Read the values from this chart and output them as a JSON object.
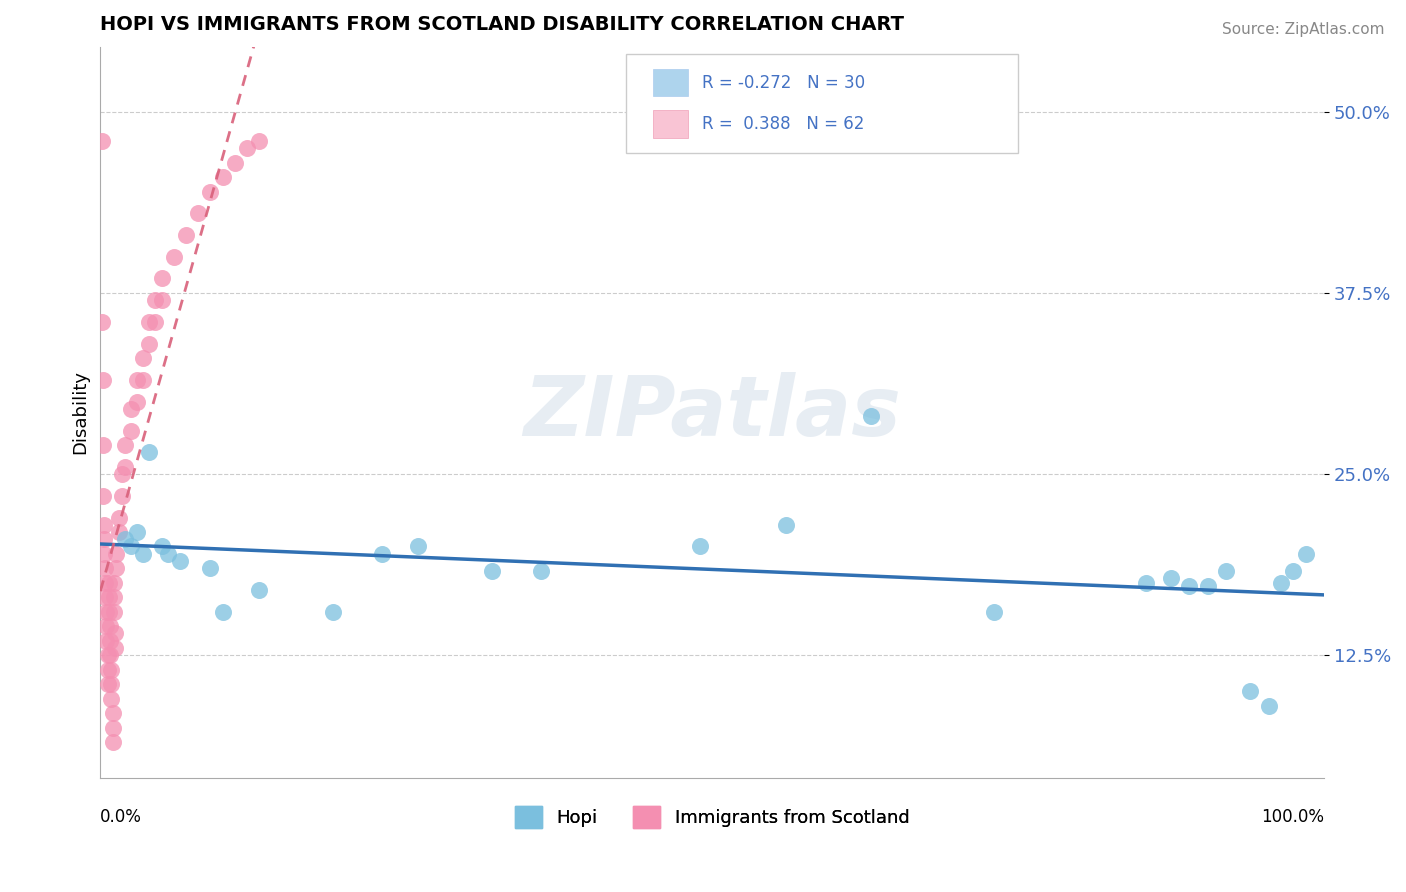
{
  "title": "HOPI VS IMMIGRANTS FROM SCOTLAND DISABILITY CORRELATION CHART",
  "source": "Source: ZipAtlas.com",
  "ylabel": "Disability",
  "y_ticks": [
    0.125,
    0.25,
    0.375,
    0.5
  ],
  "y_tick_labels": [
    "12.5%",
    "25.0%",
    "37.5%",
    "50.0%"
  ],
  "xlim": [
    0.0,
    1.0
  ],
  "ylim": [
    0.04,
    0.545
  ],
  "hopi_color": "#7bbfde",
  "scotland_color": "#f48fb1",
  "hopi_line_color": "#3070b3",
  "scotland_line_color": "#d9607a",
  "hopi_legend_color": "#aed4ed",
  "scotland_legend_color": "#f9c4d4",
  "watermark": "ZIPatlas",
  "hopi_points": [
    [
      0.02,
      0.205
    ],
    [
      0.025,
      0.2
    ],
    [
      0.03,
      0.21
    ],
    [
      0.035,
      0.195
    ],
    [
      0.04,
      0.265
    ],
    [
      0.05,
      0.2
    ],
    [
      0.055,
      0.195
    ],
    [
      0.065,
      0.19
    ],
    [
      0.09,
      0.185
    ],
    [
      0.1,
      0.155
    ],
    [
      0.13,
      0.17
    ],
    [
      0.19,
      0.155
    ],
    [
      0.23,
      0.195
    ],
    [
      0.26,
      0.2
    ],
    [
      0.32,
      0.183
    ],
    [
      0.36,
      0.183
    ],
    [
      0.49,
      0.2
    ],
    [
      0.56,
      0.215
    ],
    [
      0.63,
      0.29
    ],
    [
      0.73,
      0.155
    ],
    [
      0.855,
      0.175
    ],
    [
      0.875,
      0.178
    ],
    [
      0.89,
      0.173
    ],
    [
      0.905,
      0.173
    ],
    [
      0.92,
      0.183
    ],
    [
      0.94,
      0.1
    ],
    [
      0.955,
      0.09
    ],
    [
      0.965,
      0.175
    ],
    [
      0.975,
      0.183
    ],
    [
      0.985,
      0.195
    ]
  ],
  "scotland_points": [
    [
      0.001,
      0.48
    ],
    [
      0.001,
      0.355
    ],
    [
      0.002,
      0.315
    ],
    [
      0.002,
      0.27
    ],
    [
      0.002,
      0.235
    ],
    [
      0.003,
      0.215
    ],
    [
      0.003,
      0.205
    ],
    [
      0.003,
      0.195
    ],
    [
      0.004,
      0.185
    ],
    [
      0.004,
      0.175
    ],
    [
      0.004,
      0.165
    ],
    [
      0.005,
      0.155
    ],
    [
      0.005,
      0.145
    ],
    [
      0.005,
      0.135
    ],
    [
      0.006,
      0.125
    ],
    [
      0.006,
      0.115
    ],
    [
      0.006,
      0.105
    ],
    [
      0.007,
      0.175
    ],
    [
      0.007,
      0.165
    ],
    [
      0.007,
      0.155
    ],
    [
      0.008,
      0.145
    ],
    [
      0.008,
      0.135
    ],
    [
      0.008,
      0.125
    ],
    [
      0.009,
      0.115
    ],
    [
      0.009,
      0.105
    ],
    [
      0.009,
      0.095
    ],
    [
      0.01,
      0.085
    ],
    [
      0.01,
      0.075
    ],
    [
      0.01,
      0.065
    ],
    [
      0.011,
      0.175
    ],
    [
      0.011,
      0.165
    ],
    [
      0.011,
      0.155
    ],
    [
      0.012,
      0.14
    ],
    [
      0.012,
      0.13
    ],
    [
      0.013,
      0.195
    ],
    [
      0.013,
      0.185
    ],
    [
      0.015,
      0.22
    ],
    [
      0.015,
      0.21
    ],
    [
      0.018,
      0.25
    ],
    [
      0.018,
      0.235
    ],
    [
      0.02,
      0.27
    ],
    [
      0.02,
      0.255
    ],
    [
      0.025,
      0.295
    ],
    [
      0.025,
      0.28
    ],
    [
      0.03,
      0.315
    ],
    [
      0.03,
      0.3
    ],
    [
      0.035,
      0.33
    ],
    [
      0.035,
      0.315
    ],
    [
      0.04,
      0.355
    ],
    [
      0.04,
      0.34
    ],
    [
      0.045,
      0.37
    ],
    [
      0.045,
      0.355
    ],
    [
      0.05,
      0.385
    ],
    [
      0.05,
      0.37
    ],
    [
      0.06,
      0.4
    ],
    [
      0.07,
      0.415
    ],
    [
      0.08,
      0.43
    ],
    [
      0.09,
      0.445
    ],
    [
      0.1,
      0.455
    ],
    [
      0.11,
      0.465
    ],
    [
      0.12,
      0.475
    ],
    [
      0.13,
      0.48
    ]
  ],
  "hopi_trend": [
    -0.045,
    0.208
  ],
  "scotland_trend_slope": 3.2,
  "scotland_trend_intercept": 0.175
}
